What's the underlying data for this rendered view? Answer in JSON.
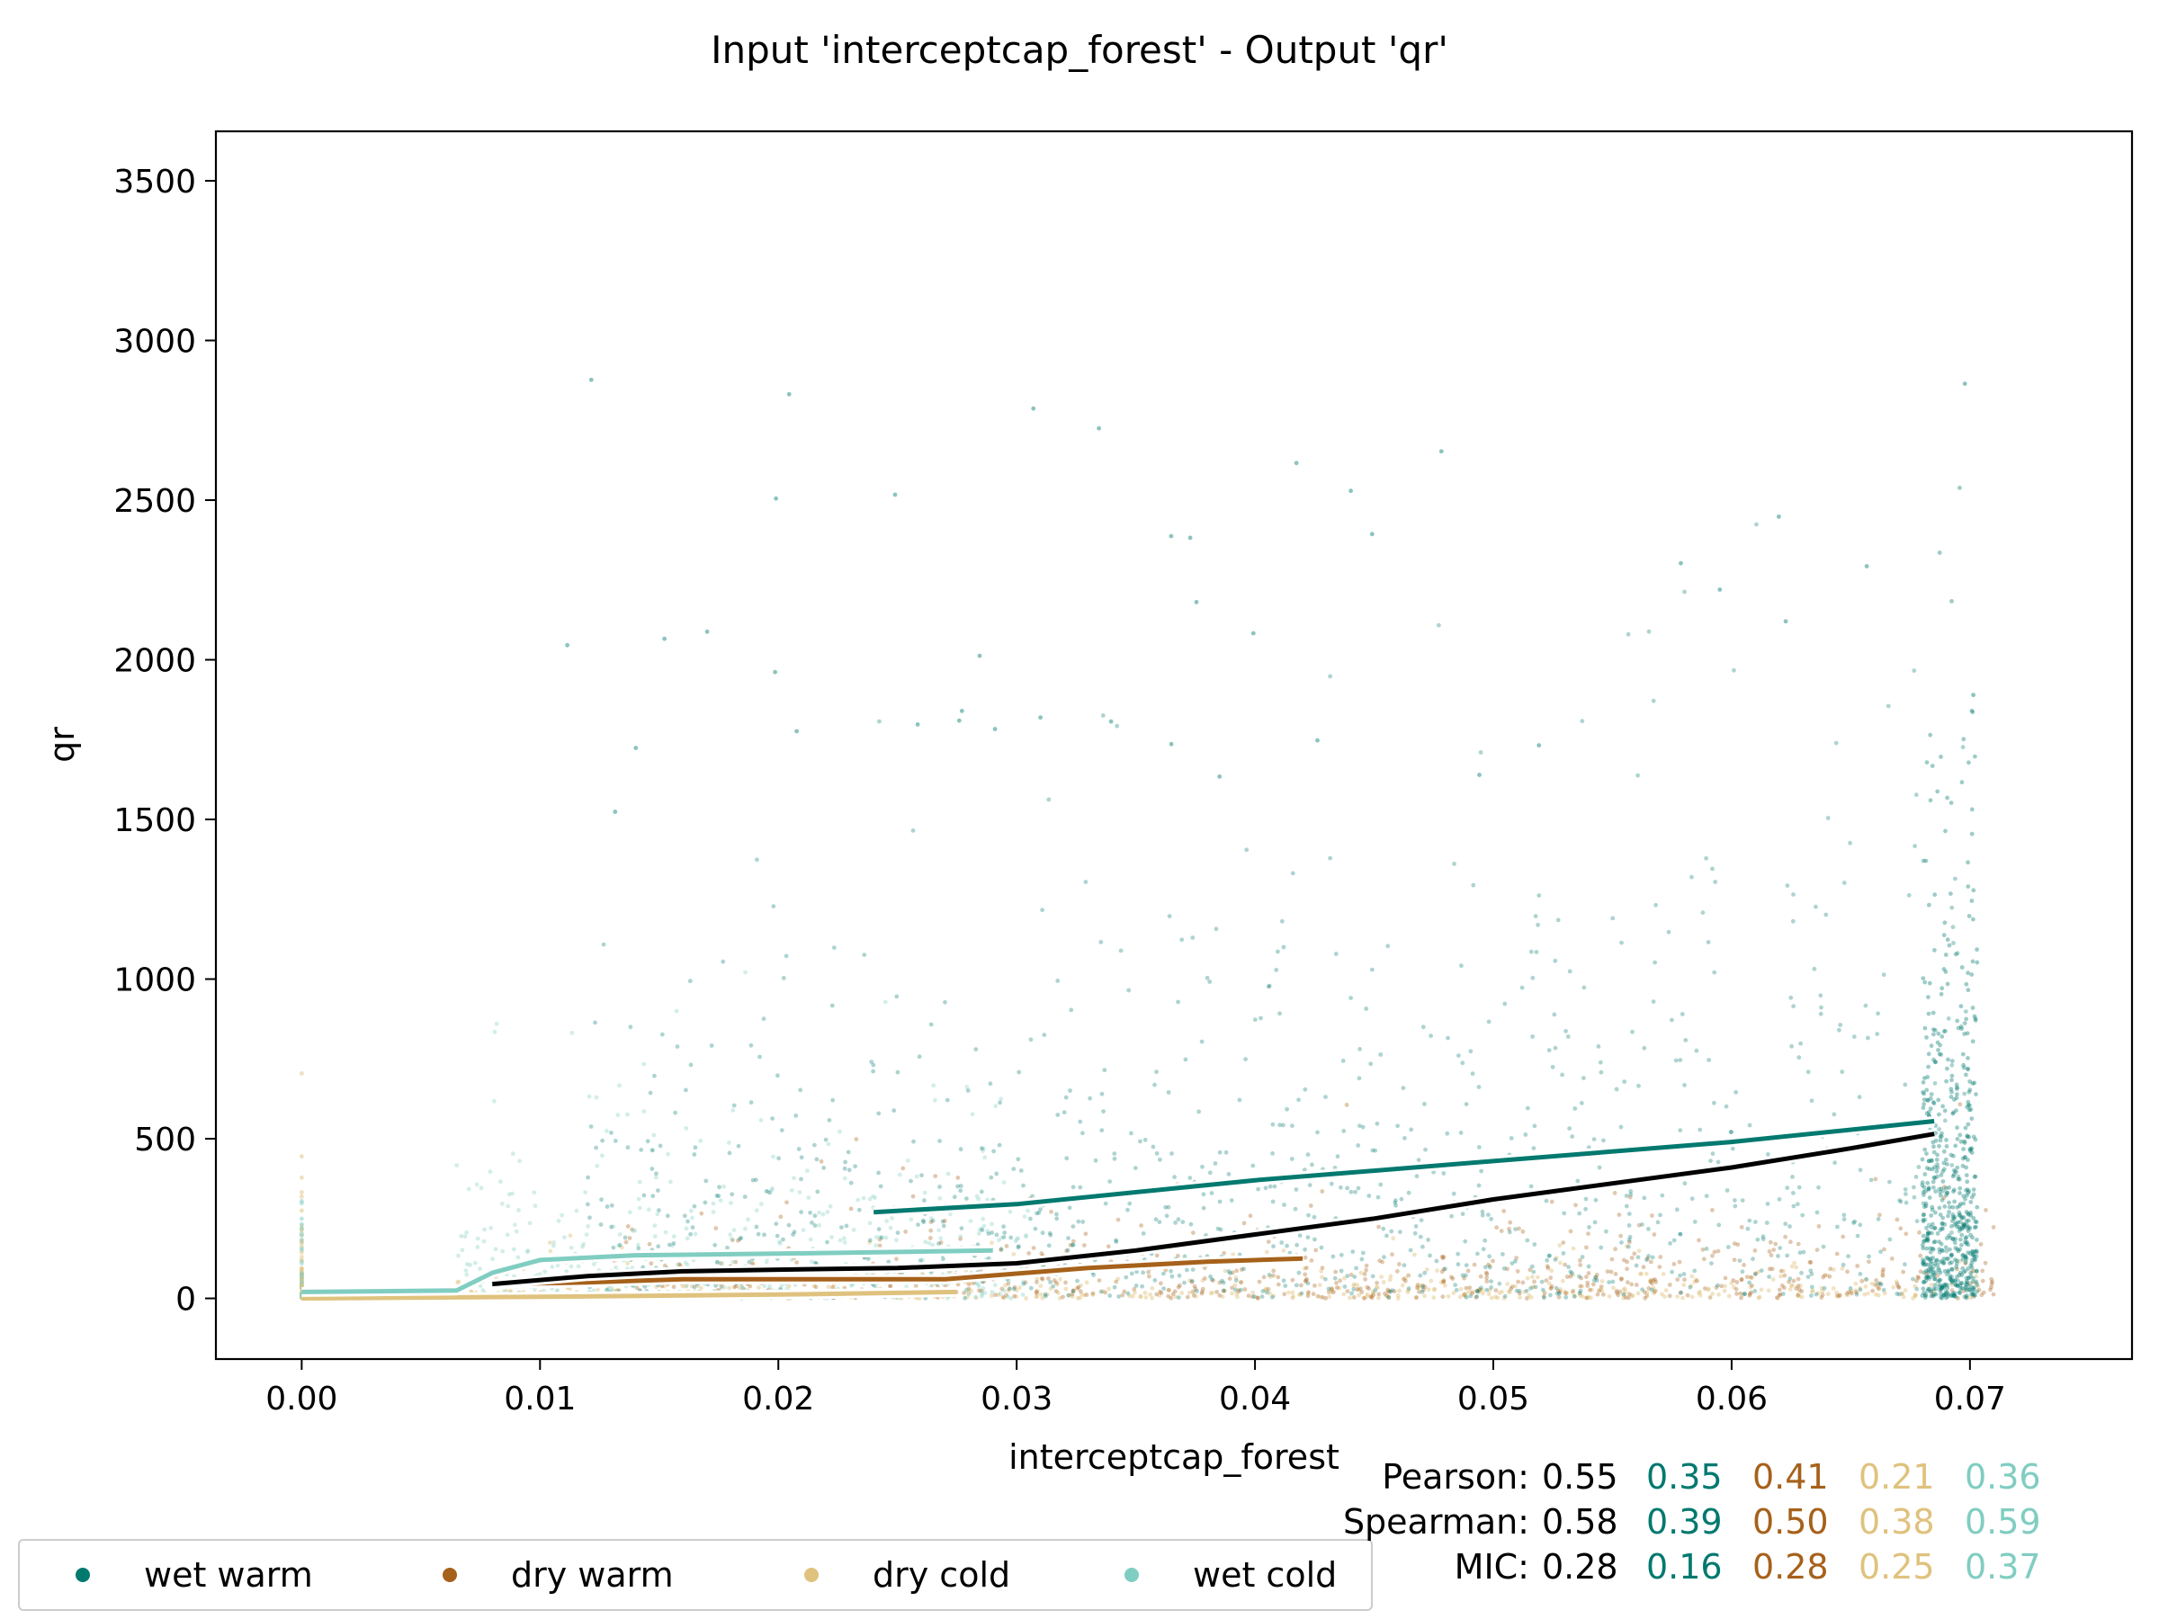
{
  "chart_data": {
    "type": "scatter",
    "title": "Input 'interceptcap_forest' - Output 'qr'",
    "xlabel": "interceptcap_forest",
    "ylabel": "qr",
    "xlim": [
      -0.0036,
      0.0768
    ],
    "ylim": [
      -190,
      3655
    ],
    "x_ticks": [
      0.0,
      0.01,
      0.02,
      0.03,
      0.04,
      0.05,
      0.06,
      0.07
    ],
    "x_tick_labels": [
      "0.00",
      "0.01",
      "0.02",
      "0.03",
      "0.04",
      "0.05",
      "0.06",
      "0.07"
    ],
    "y_ticks": [
      0,
      500,
      1000,
      1500,
      2000,
      2500,
      3000,
      3500
    ],
    "y_tick_labels": [
      "0",
      "500",
      "1000",
      "1500",
      "2000",
      "2500",
      "3000",
      "3500"
    ],
    "grid": false,
    "legend_position": "bottom-left",
    "series": [
      {
        "name": "wet warm",
        "color": "#01796f",
        "trend": {
          "x": [
            0.024,
            0.03,
            0.04,
            0.05,
            0.06,
            0.0685
          ],
          "y": [
            270,
            295,
            370,
            430,
            490,
            555
          ]
        }
      },
      {
        "name": "dry warm",
        "color": "#a6611a",
        "trend": {
          "x": [
            0.008,
            0.012,
            0.016,
            0.02,
            0.027,
            0.033,
            0.038,
            0.042
          ],
          "y": [
            45,
            50,
            60,
            60,
            60,
            95,
            115,
            125
          ]
        }
      },
      {
        "name": "dry cold",
        "color": "#dfc27d",
        "trend": {
          "x": [
            0.0,
            0.01,
            0.02,
            0.0275
          ],
          "y": [
            0,
            5,
            12,
            20
          ]
        }
      },
      {
        "name": "wet cold",
        "color": "#80cdc1",
        "trend": {
          "x": [
            0.0,
            0.0065,
            0.008,
            0.01,
            0.014,
            0.02,
            0.029
          ],
          "y": [
            20,
            25,
            80,
            120,
            135,
            140,
            150
          ]
        }
      }
    ],
    "overall_trend": {
      "color": "#000000",
      "x": [
        0.008,
        0.012,
        0.016,
        0.02,
        0.025,
        0.03,
        0.035,
        0.04,
        0.045,
        0.05,
        0.055,
        0.06,
        0.065,
        0.0685
      ],
      "y": [
        45,
        70,
        85,
        90,
        95,
        110,
        150,
        200,
        250,
        310,
        360,
        410,
        470,
        515
      ]
    },
    "statistics": {
      "labels": [
        "Pearson:",
        "Spearman:",
        "MIC:"
      ],
      "overall": [
        "0.55",
        "0.58",
        "0.28"
      ],
      "wet_warm": [
        "0.35",
        "0.39",
        "0.16"
      ],
      "dry_warm": [
        "0.41",
        "0.50",
        "0.28"
      ],
      "dry_cold": [
        "0.21",
        "0.38",
        "0.25"
      ],
      "wet_cold": [
        "0.36",
        "0.59",
        "0.37"
      ]
    }
  }
}
